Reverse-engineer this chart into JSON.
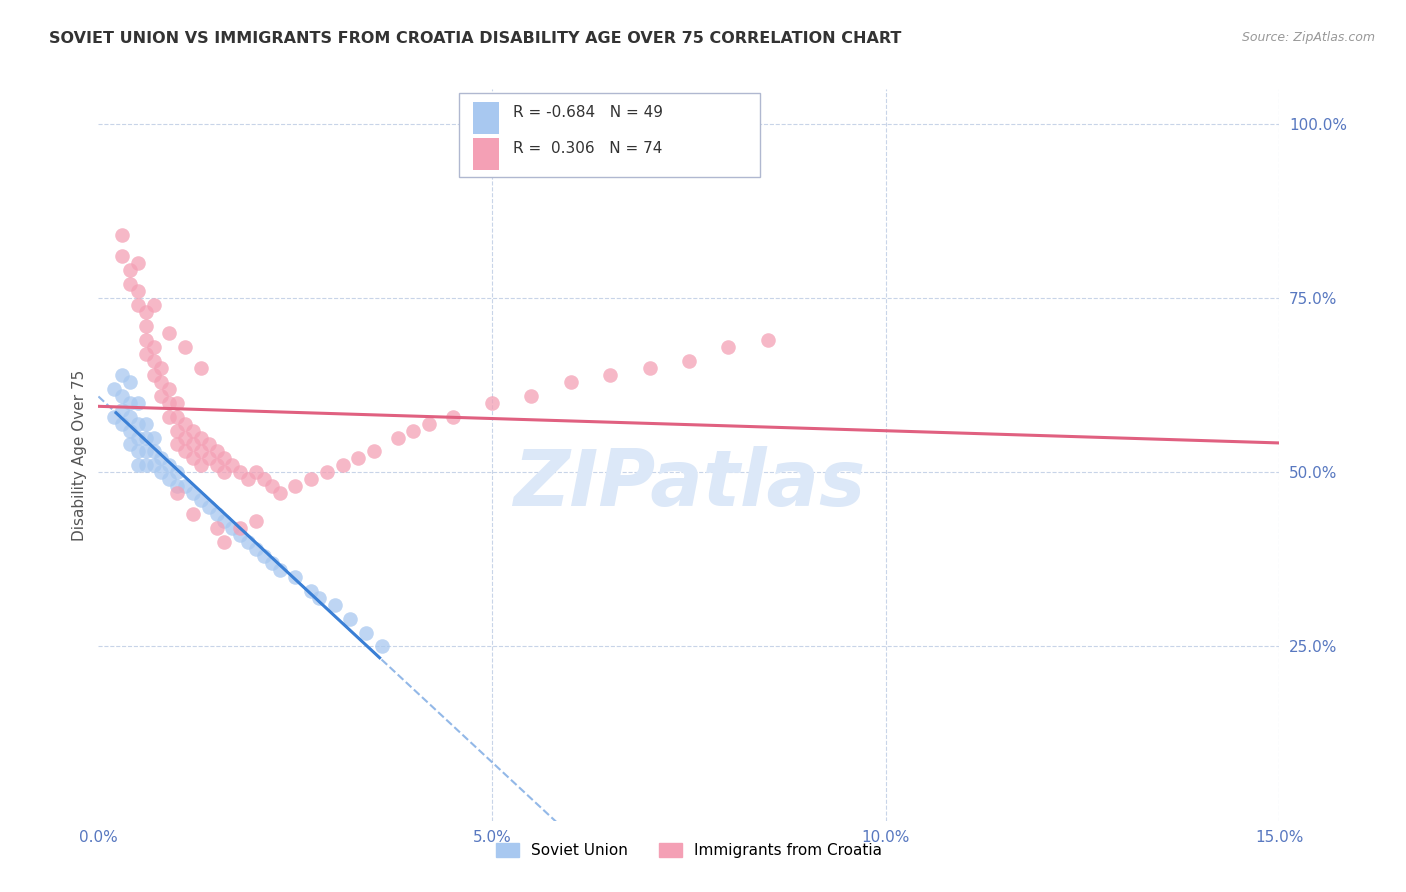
{
  "title": "SOVIET UNION VS IMMIGRANTS FROM CROATIA DISABILITY AGE OVER 75 CORRELATION CHART",
  "source": "Source: ZipAtlas.com",
  "xlabel_ticks": [
    "0.0%",
    "5.0%",
    "10.0%",
    "15.0%"
  ],
  "xlabel_vals": [
    0.0,
    0.05,
    0.1,
    0.15
  ],
  "ylabel_right_ticks": [
    "100.0%",
    "75.0%",
    "50.0%",
    "25.0%"
  ],
  "ylabel_right_vals": [
    1.0,
    0.75,
    0.5,
    0.25
  ],
  "xlim": [
    0.0,
    0.15
  ],
  "ylim": [
    0.0,
    1.05
  ],
  "ylabel": "Disability Age Over 75",
  "soviet_color": "#a8c8f0",
  "soviet_line_color": "#3a7fd5",
  "croatia_color": "#f4a0b5",
  "croatia_line_color": "#e06080",
  "watermark_color": "#dce8f8",
  "background_color": "#ffffff",
  "grid_color": "#c8d4e8",
  "title_color": "#333333",
  "axis_label_color": "#5878c0",
  "legend_R_soviet": "-0.684",
  "legend_N_soviet": "49",
  "legend_R_croatia": "0.306",
  "legend_N_croatia": "74",
  "soviet_points": [
    [
      0.002,
      0.62
    ],
    [
      0.002,
      0.58
    ],
    [
      0.003,
      0.64
    ],
    [
      0.003,
      0.61
    ],
    [
      0.003,
      0.59
    ],
    [
      0.003,
      0.57
    ],
    [
      0.004,
      0.63
    ],
    [
      0.004,
      0.6
    ],
    [
      0.004,
      0.58
    ],
    [
      0.004,
      0.56
    ],
    [
      0.004,
      0.54
    ],
    [
      0.005,
      0.6
    ],
    [
      0.005,
      0.57
    ],
    [
      0.005,
      0.55
    ],
    [
      0.005,
      0.53
    ],
    [
      0.005,
      0.51
    ],
    [
      0.006,
      0.57
    ],
    [
      0.006,
      0.55
    ],
    [
      0.006,
      0.53
    ],
    [
      0.006,
      0.51
    ],
    [
      0.007,
      0.55
    ],
    [
      0.007,
      0.53
    ],
    [
      0.007,
      0.51
    ],
    [
      0.008,
      0.52
    ],
    [
      0.008,
      0.5
    ],
    [
      0.009,
      0.51
    ],
    [
      0.009,
      0.49
    ],
    [
      0.01,
      0.5
    ],
    [
      0.01,
      0.48
    ],
    [
      0.011,
      0.48
    ],
    [
      0.012,
      0.47
    ],
    [
      0.013,
      0.46
    ],
    [
      0.014,
      0.45
    ],
    [
      0.015,
      0.44
    ],
    [
      0.016,
      0.43
    ],
    [
      0.017,
      0.42
    ],
    [
      0.018,
      0.41
    ],
    [
      0.019,
      0.4
    ],
    [
      0.02,
      0.39
    ],
    [
      0.021,
      0.38
    ],
    [
      0.022,
      0.37
    ],
    [
      0.023,
      0.36
    ],
    [
      0.025,
      0.35
    ],
    [
      0.027,
      0.33
    ],
    [
      0.028,
      0.32
    ],
    [
      0.03,
      0.31
    ],
    [
      0.032,
      0.29
    ],
    [
      0.034,
      0.27
    ],
    [
      0.036,
      0.25
    ]
  ],
  "croatia_points": [
    [
      0.003,
      0.84
    ],
    [
      0.003,
      0.81
    ],
    [
      0.004,
      0.79
    ],
    [
      0.004,
      0.77
    ],
    [
      0.005,
      0.8
    ],
    [
      0.005,
      0.76
    ],
    [
      0.005,
      0.74
    ],
    [
      0.006,
      0.73
    ],
    [
      0.006,
      0.71
    ],
    [
      0.006,
      0.69
    ],
    [
      0.006,
      0.67
    ],
    [
      0.007,
      0.68
    ],
    [
      0.007,
      0.66
    ],
    [
      0.007,
      0.64
    ],
    [
      0.008,
      0.65
    ],
    [
      0.008,
      0.63
    ],
    [
      0.008,
      0.61
    ],
    [
      0.009,
      0.62
    ],
    [
      0.009,
      0.6
    ],
    [
      0.009,
      0.58
    ],
    [
      0.01,
      0.6
    ],
    [
      0.01,
      0.58
    ],
    [
      0.01,
      0.56
    ],
    [
      0.01,
      0.54
    ],
    [
      0.011,
      0.57
    ],
    [
      0.011,
      0.55
    ],
    [
      0.011,
      0.53
    ],
    [
      0.012,
      0.56
    ],
    [
      0.012,
      0.54
    ],
    [
      0.012,
      0.52
    ],
    [
      0.013,
      0.55
    ],
    [
      0.013,
      0.53
    ],
    [
      0.013,
      0.51
    ],
    [
      0.014,
      0.54
    ],
    [
      0.014,
      0.52
    ],
    [
      0.015,
      0.53
    ],
    [
      0.015,
      0.51
    ],
    [
      0.016,
      0.52
    ],
    [
      0.016,
      0.5
    ],
    [
      0.017,
      0.51
    ],
    [
      0.018,
      0.5
    ],
    [
      0.019,
      0.49
    ],
    [
      0.02,
      0.5
    ],
    [
      0.021,
      0.49
    ],
    [
      0.022,
      0.48
    ],
    [
      0.023,
      0.47
    ],
    [
      0.025,
      0.48
    ],
    [
      0.027,
      0.49
    ],
    [
      0.029,
      0.5
    ],
    [
      0.031,
      0.51
    ],
    [
      0.033,
      0.52
    ],
    [
      0.035,
      0.53
    ],
    [
      0.038,
      0.55
    ],
    [
      0.04,
      0.56
    ],
    [
      0.042,
      0.57
    ],
    [
      0.045,
      0.58
    ],
    [
      0.05,
      0.6
    ],
    [
      0.055,
      0.61
    ],
    [
      0.06,
      0.63
    ],
    [
      0.065,
      0.64
    ],
    [
      0.07,
      0.65
    ],
    [
      0.075,
      0.66
    ],
    [
      0.08,
      0.68
    ],
    [
      0.085,
      0.69
    ],
    [
      0.01,
      0.47
    ],
    [
      0.012,
      0.44
    ],
    [
      0.015,
      0.42
    ],
    [
      0.016,
      0.4
    ],
    [
      0.018,
      0.42
    ],
    [
      0.02,
      0.43
    ],
    [
      0.007,
      0.74
    ],
    [
      0.009,
      0.7
    ],
    [
      0.011,
      0.68
    ],
    [
      0.013,
      0.65
    ]
  ]
}
